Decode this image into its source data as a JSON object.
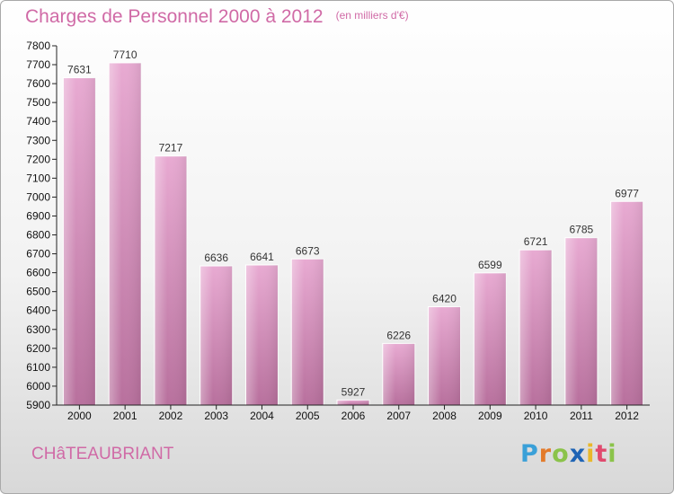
{
  "header": {
    "title": "Charges de Personnel 2000 à 2012",
    "subtitle": "(en milliers d'€)"
  },
  "footer": {
    "city": "CHâTEAUBRIANT",
    "logo": {
      "letters": [
        "P",
        "r",
        "o",
        "x",
        "i",
        "t",
        "i"
      ],
      "colors": [
        "#3aa0d8",
        "#e37a2a",
        "#8bc34a",
        "#1f64b5",
        "#e9b82a",
        "#e04a6e",
        "#8bc34a"
      ]
    }
  },
  "chart_data": {
    "type": "bar",
    "categories": [
      "2000",
      "2001",
      "2002",
      "2003",
      "2004",
      "2005",
      "2006",
      "2007",
      "2008",
      "2009",
      "2010",
      "2011",
      "2012"
    ],
    "values": [
      7631,
      7710,
      7217,
      6636,
      6641,
      6673,
      5927,
      6226,
      6420,
      6599,
      6721,
      6785,
      6977
    ],
    "title": "Charges de Personnel 2000 à 2012",
    "xlabel": "",
    "ylabel": "",
    "ylim": [
      5900,
      7800
    ],
    "yticks": [
      5900,
      6000,
      6100,
      6200,
      6300,
      6400,
      6500,
      6600,
      6700,
      6800,
      6900,
      7000,
      7100,
      7200,
      7300,
      7400,
      7500,
      7600,
      7700,
      7800
    ],
    "grid": false,
    "legend": "none",
    "bar_color": "#d98fbd",
    "bar_color_light": "#e8aad2",
    "bar_color_dark": "#b8709d"
  }
}
